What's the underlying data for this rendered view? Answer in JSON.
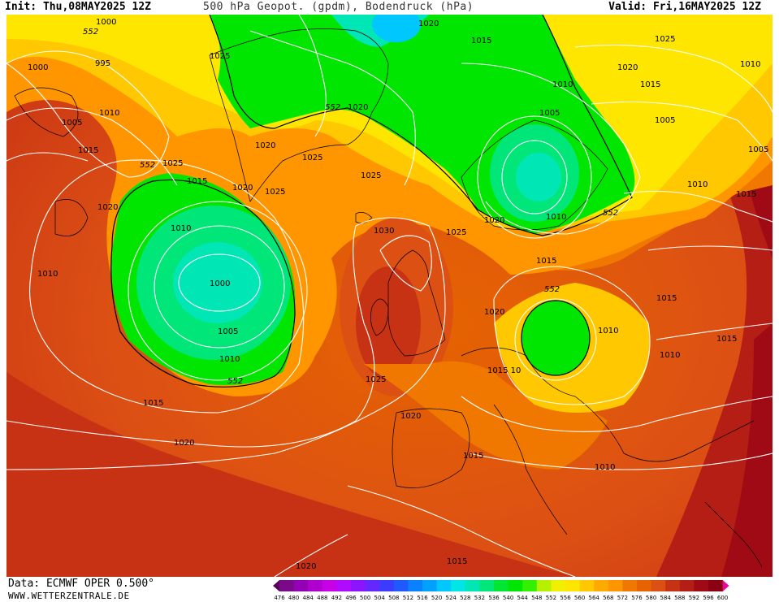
{
  "header": {
    "init": "Init: Thu,08MAY2025 12Z",
    "title": "500 hPa Geopot. (gpdm), Bodendruck (hPa)",
    "valid": "Valid: Fri,16MAY2025 12Z"
  },
  "footer": {
    "data_source": "Data: ECMWF OPER 0.500°",
    "website": "WWW.WETTERZENTRALE.DE"
  },
  "legend": {
    "values": [
      "476",
      "480",
      "484",
      "488",
      "492",
      "496",
      "500",
      "504",
      "508",
      "512",
      "516",
      "520",
      "524",
      "528",
      "532",
      "536",
      "540",
      "544",
      "548",
      "552",
      "556",
      "560",
      "564",
      "568",
      "572",
      "576",
      "580",
      "584",
      "588",
      "592",
      "596",
      "600"
    ],
    "colors": [
      "#5a005a",
      "#7a0a8a",
      "#9400b4",
      "#b000d0",
      "#c800e6",
      "#b00aff",
      "#8c14ff",
      "#6428ff",
      "#3c3cff",
      "#1e5aff",
      "#0a82ff",
      "#00a0ff",
      "#00c8ff",
      "#00e6e6",
      "#00e6b4",
      "#00e678",
      "#00e632",
      "#00e600",
      "#32f000",
      "#b4f000",
      "#f0f000",
      "#ffe600",
      "#ffc800",
      "#ffaa00",
      "#ff9600",
      "#f07800",
      "#e66400",
      "#dc5014",
      "#c83214",
      "#b41e14",
      "#a00a14",
      "#8c0014",
      "#e60a96"
    ]
  },
  "map": {
    "geopotential_label": "552",
    "isobars": {
      "h_1000": "1000",
      "h_995": "995",
      "h_1005": "1005",
      "h_1010": "1010",
      "h_1015": "1015",
      "h_1020": "1020",
      "h_1025": "1025",
      "h_1030": "1030",
      "h_1015_10": "1015 10"
    }
  }
}
